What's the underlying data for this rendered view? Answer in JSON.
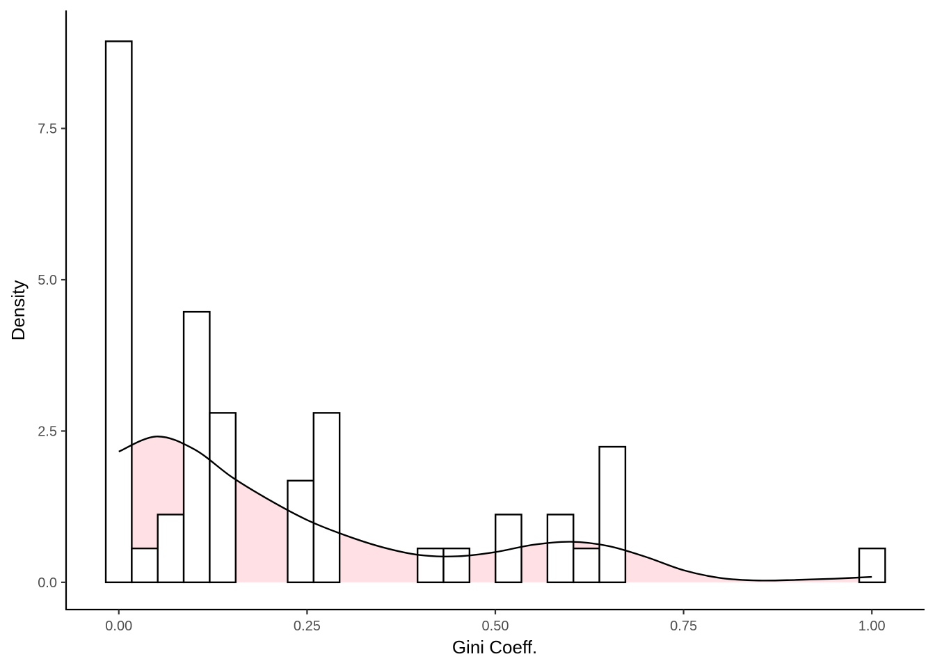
{
  "chart_data": {
    "type": "histogram",
    "title": "",
    "xlabel": "Gini Coeff.",
    "ylabel": "Density",
    "xlim": [
      -0.07,
      1.07
    ],
    "ylim": [
      -0.45,
      9.45
    ],
    "x_ticks": [
      0.0,
      0.25,
      0.5,
      0.75,
      1.0
    ],
    "x_tick_labels": [
      "0.00",
      "0.25",
      "0.50",
      "0.75",
      "1.00"
    ],
    "y_ticks": [
      0.0,
      2.5,
      5.0,
      7.5
    ],
    "y_tick_labels": [
      "0.0",
      "2.5",
      "5.0",
      "7.5"
    ],
    "grid": false,
    "legend": "none",
    "histogram": {
      "fill_color": "#ffffff",
      "edge_color": "#000000",
      "bins": [
        {
          "x0": -0.0173,
          "x1": 0.0172,
          "density": 8.94
        },
        {
          "x0": 0.0172,
          "x1": 0.0517,
          "density": 0.56
        },
        {
          "x0": 0.0517,
          "x1": 0.0862,
          "density": 1.12
        },
        {
          "x0": 0.0862,
          "x1": 0.1207,
          "density": 4.47
        },
        {
          "x0": 0.1207,
          "x1": 0.1552,
          "density": 2.8
        },
        {
          "x0": 0.1552,
          "x1": 0.1897,
          "density": 0
        },
        {
          "x0": 0.1897,
          "x1": 0.2242,
          "density": 0
        },
        {
          "x0": 0.2242,
          "x1": 0.2587,
          "density": 1.68
        },
        {
          "x0": 0.2587,
          "x1": 0.2932,
          "density": 2.8
        },
        {
          "x0": 0.2932,
          "x1": 0.3277,
          "density": 0
        },
        {
          "x0": 0.3277,
          "x1": 0.3622,
          "density": 0
        },
        {
          "x0": 0.3622,
          "x1": 0.3967,
          "density": 0
        },
        {
          "x0": 0.3967,
          "x1": 0.4312,
          "density": 0.56
        },
        {
          "x0": 0.4312,
          "x1": 0.4657,
          "density": 0.56
        },
        {
          "x0": 0.4657,
          "x1": 0.5002,
          "density": 0
        },
        {
          "x0": 0.5002,
          "x1": 0.5347,
          "density": 1.12
        },
        {
          "x0": 0.5347,
          "x1": 0.5692,
          "density": 0
        },
        {
          "x0": 0.5692,
          "x1": 0.6037,
          "density": 1.12
        },
        {
          "x0": 0.6037,
          "x1": 0.6382,
          "density": 0.56
        },
        {
          "x0": 0.6382,
          "x1": 0.6727,
          "density": 2.24
        },
        {
          "x0": 0.6727,
          "x1": 0.7072,
          "density": 0
        },
        {
          "x0": 0.7072,
          "x1": 0.7417,
          "density": 0
        },
        {
          "x0": 0.7417,
          "x1": 0.7762,
          "density": 0
        },
        {
          "x0": 0.7762,
          "x1": 0.8107,
          "density": 0
        },
        {
          "x0": 0.8107,
          "x1": 0.8452,
          "density": 0
        },
        {
          "x0": 0.8452,
          "x1": 0.8797,
          "density": 0
        },
        {
          "x0": 0.8797,
          "x1": 0.9142,
          "density": 0
        },
        {
          "x0": 0.9142,
          "x1": 0.9487,
          "density": 0
        },
        {
          "x0": 0.9487,
          "x1": 0.9832,
          "density": 0
        },
        {
          "x0": 0.9832,
          "x1": 1.0177,
          "density": 0.56
        }
      ]
    },
    "density": {
      "fill_color": "#ffdde1",
      "line_color": "#000000",
      "x": [
        0.0,
        0.05,
        0.1,
        0.15,
        0.2,
        0.25,
        0.3,
        0.35,
        0.4,
        0.45,
        0.5,
        0.55,
        0.6,
        0.65,
        0.7,
        0.75,
        0.8,
        0.85,
        0.9,
        0.95,
        1.0
      ],
      "y": [
        2.16,
        2.41,
        2.2,
        1.74,
        1.36,
        1.03,
        0.78,
        0.58,
        0.45,
        0.43,
        0.5,
        0.62,
        0.67,
        0.6,
        0.42,
        0.2,
        0.07,
        0.03,
        0.04,
        0.06,
        0.09
      ]
    }
  }
}
